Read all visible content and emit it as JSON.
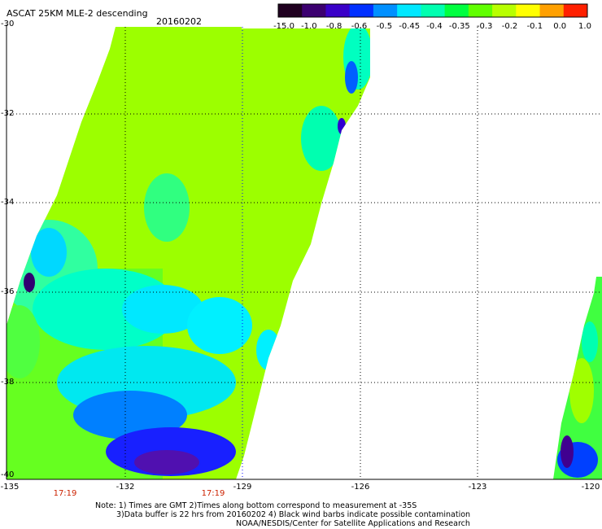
{
  "header": {
    "title": "ASCAT 25KM MLE-2 descending",
    "date": "20160202"
  },
  "colorbar": {
    "labels": [
      "-15.0",
      "-1.0",
      "-0.8",
      "-0.6",
      "-0.5",
      "-0.45",
      "-0.4",
      "-0.35",
      "-0.3",
      "-0.2",
      "-0.1",
      "0.0",
      "1.0"
    ],
    "colors": [
      "#200020",
      "#3c0070",
      "#3a00c8",
      "#0030ff",
      "#0090ff",
      "#00e8ff",
      "#00ffb0",
      "#00ff40",
      "#60ff00",
      "#b8ff00",
      "#ffff00",
      "#ffa000",
      "#ff2000"
    ]
  },
  "axes": {
    "lat_labels": [
      "-30",
      "-32",
      "-34",
      "-36",
      "-38",
      "-40"
    ],
    "lon_labels": [
      "-135",
      "-132",
      "-129",
      "-126",
      "-123",
      "-120"
    ]
  },
  "times": [
    "17:19",
    "17:19"
  ],
  "notes": {
    "line1": "Note: 1) Times are GMT 2)Times along bottom correspond to measurement at -35S",
    "line2": "3)Data buffer is 22 hrs from 20160202 4) Black wind barbs indicate possible contamination",
    "line3": "NOAA/NESDIS/Center for Satellite Applications and Research"
  }
}
